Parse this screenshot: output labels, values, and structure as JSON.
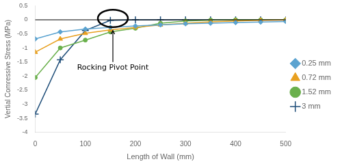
{
  "chart_data": {
    "type": "line",
    "xlabel": "Length of Wall (mm)",
    "ylabel": "Vertial Comressive Stress (MPa)",
    "x": [
      0,
      50,
      100,
      150,
      200,
      250,
      300,
      350,
      400,
      450,
      500
    ],
    "series": [
      {
        "name": "0.25 mm",
        "color": "#5BA3D0",
        "marker": "diamond",
        "values": [
          -0.68,
          -0.43,
          -0.33,
          -0.27,
          -0.22,
          -0.18,
          -0.14,
          -0.12,
          -0.1,
          -0.08,
          -0.06
        ]
      },
      {
        "name": "0.72 mm",
        "color": "#E8A020",
        "marker": "triangle",
        "values": [
          -1.15,
          -0.68,
          -0.48,
          -0.36,
          -0.27,
          -0.18,
          -0.12,
          -0.07,
          -0.04,
          -0.02,
          -0.005
        ]
      },
      {
        "name": "1.52 mm",
        "color": "#6AB04C",
        "marker": "circle",
        "values": [
          -2.05,
          -1.0,
          -0.72,
          -0.43,
          -0.3,
          -0.12,
          -0.04,
          -0.01,
          0.0,
          0.0,
          0.0
        ]
      },
      {
        "name": "3 mm",
        "color": "#1F4E79",
        "marker": "plus",
        "values": [
          -3.35,
          -1.42,
          -0.38,
          -0.02,
          0.0,
          0.0,
          0.0,
          0.0,
          0.0,
          0.0,
          0.0
        ]
      }
    ],
    "xlim": [
      0,
      500
    ],
    "ylim": [
      -4,
      0.5
    ],
    "xticks": [
      0,
      100,
      200,
      300,
      400,
      500
    ],
    "yticks": [
      -4,
      -3.5,
      -3,
      -2.5,
      -2,
      -1.5,
      -1,
      -0.5,
      0,
      0.5
    ],
    "hline": 0,
    "ellipse": {
      "x": 155,
      "y": 0.05,
      "width": 60,
      "height": 0.62
    },
    "annotations": [
      {
        "text": "Rocking Pivot Point",
        "x": 155,
        "y": -1.55,
        "arrow_x": 155,
        "arrow_y": -0.38
      }
    ],
    "legend": "right",
    "grid": false
  }
}
